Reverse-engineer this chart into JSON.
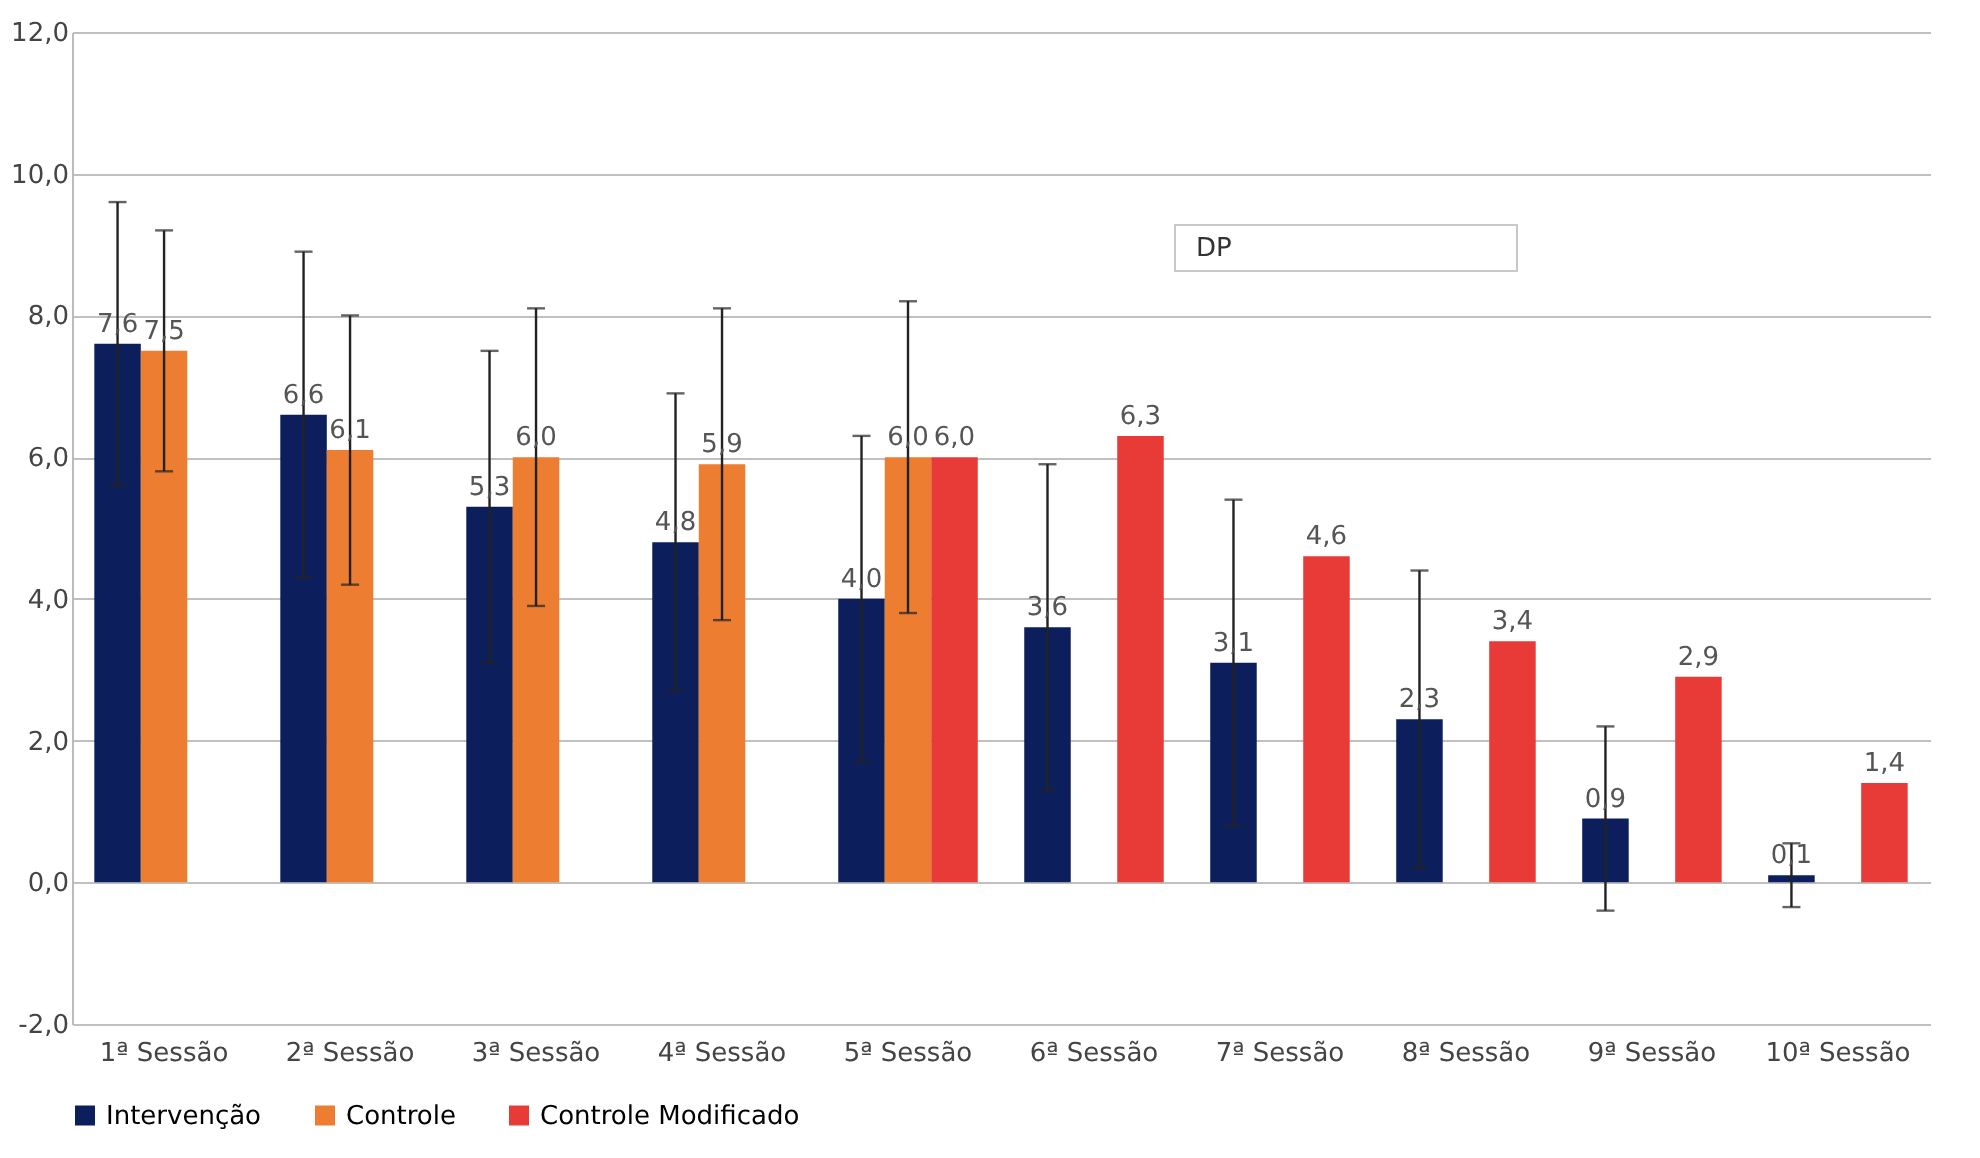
{
  "chart_data": {
    "type": "bar",
    "categories": [
      "1ª Sessão",
      "2ª Sessão",
      "3ª Sessão",
      "4ª Sessão",
      "5ª Sessão",
      "6ª Sessão",
      "7ª Sessão",
      "8ª Sessão",
      "9ª Sessão",
      "10ª Sessão"
    ],
    "series": [
      {
        "name": "Intervenção",
        "color": "#0c1f5c",
        "values": [
          7.6,
          6.6,
          5.3,
          4.8,
          4.0,
          3.6,
          3.1,
          2.3,
          0.9,
          0.1
        ],
        "value_labels": [
          "7,6",
          "6,6",
          "5,3",
          "4,8",
          "4,0",
          "3,6",
          "3,1",
          "2,3",
          "0,9",
          "0,1"
        ],
        "errors": [
          2.0,
          2.3,
          2.2,
          2.1,
          2.3,
          2.3,
          2.3,
          2.1,
          1.3,
          0.45
        ]
      },
      {
        "name": "Controle",
        "color": "#ed7d31",
        "values": [
          7.5,
          6.1,
          6.0,
          5.9,
          6.0,
          null,
          null,
          null,
          null,
          null
        ],
        "value_labels": [
          "7,5",
          "6,1",
          "6,0",
          "5,9",
          "6,0",
          null,
          null,
          null,
          null,
          null
        ],
        "errors": [
          1.7,
          1.9,
          2.1,
          2.2,
          2.2,
          null,
          null,
          null,
          null,
          null
        ]
      },
      {
        "name": "Controle Modificado",
        "color": "#e83a36",
        "values": [
          null,
          null,
          null,
          null,
          6.0,
          6.3,
          4.6,
          3.4,
          2.9,
          1.4
        ],
        "value_labels": [
          null,
          null,
          null,
          null,
          "6,0",
          "6,3",
          "4,6",
          "3,4",
          "2,9",
          "1,4"
        ]
      }
    ],
    "ylim": [
      -2,
      12
    ],
    "yticks": [
      {
        "value": -2,
        "label": "-2,0"
      },
      {
        "value": 0,
        "label": "0,0"
      },
      {
        "value": 2,
        "label": "2,0"
      },
      {
        "value": 4,
        "label": "4,0"
      },
      {
        "value": 6,
        "label": "6,0"
      },
      {
        "value": 8,
        "label": "8,0"
      },
      {
        "value": 10,
        "label": "10,0"
      },
      {
        "value": 12,
        "label": "12,0"
      }
    ],
    "grid": "y",
    "legend": "bottom",
    "annotations": [
      "DP"
    ]
  }
}
